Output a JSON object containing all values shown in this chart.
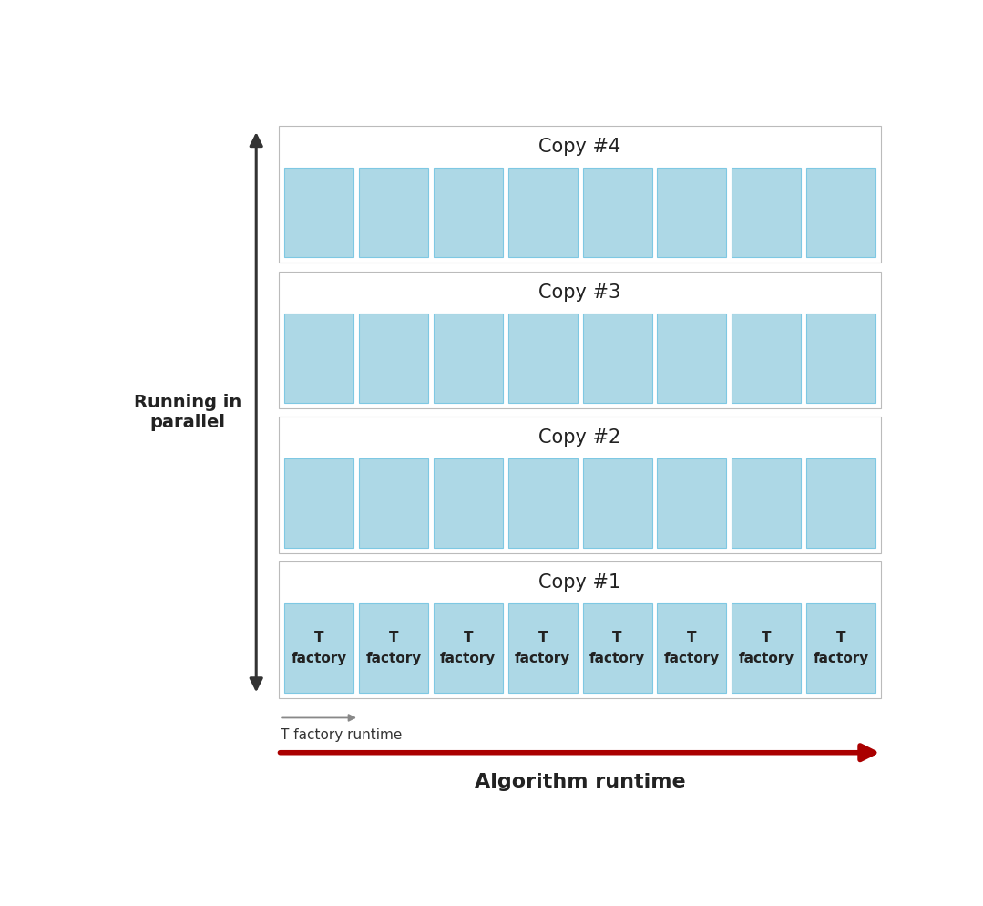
{
  "num_copies": 4,
  "num_factories": 8,
  "copy_labels": [
    "Copy #4",
    "Copy #3",
    "Copy #2",
    "Copy #1"
  ],
  "factory_label_top": "T",
  "factory_label_bottom": "factory",
  "box_color": "#ADD8E6",
  "box_edge_color": "#7EC8E3",
  "outer_box_edge_color": "#bbbbbb",
  "copy_label_fontsize": 15,
  "factory_label_fontsize": 11,
  "parallel_label": "Running in\nparallel",
  "parallel_label_fontsize": 14,
  "algo_runtime_label": "Algorithm runtime",
  "algo_runtime_fontsize": 16,
  "t_factory_runtime_label": "T factory runtime",
  "t_factory_runtime_fontsize": 11,
  "arrow_color_algo": "#aa0000",
  "arrow_color_parallel": "#333333",
  "arrow_color_t": "#888888",
  "background_color": "#ffffff",
  "fig_width": 10.79,
  "fig_height": 9.94
}
